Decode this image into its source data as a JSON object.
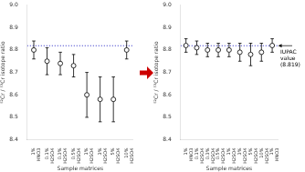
{
  "chart_data": [
    {
      "type": "scatter",
      "xlabel": "Sample matrices",
      "ylabel": "⁵²Cr / ⁵³Cr isotope ratio",
      "categories": [
        "1%\nHNO3",
        "0.1%\nH2SO4",
        "0.3%\nH2SO4",
        "0.5%\nH2SO4",
        "1%\nH2SO4",
        "3%\nH2SO4",
        "5%\nH2SO4",
        "10%\nH2SO4"
      ],
      "values": [
        8.8,
        8.75,
        8.74,
        8.73,
        8.6,
        8.58,
        8.58,
        8.8
      ],
      "errors": [
        0.04,
        0.06,
        0.05,
        0.05,
        0.1,
        0.1,
        0.1,
        0.04
      ],
      "color": "black",
      "marker": "circle",
      "ylim": [
        8.4,
        9.0
      ],
      "yticks": [
        8.4,
        8.5,
        8.6,
        8.7,
        8.8,
        8.9,
        {
          "value": 9.0,
          "label": "9.0"
        }
      ],
      "grid": false,
      "reference_line": {
        "value": 8.819,
        "color": "#4444cc",
        "line_style": "dotted"
      },
      "arrow": {
        "color": "#cc0000"
      }
    },
    {
      "type": "scatter",
      "xlabel": "Sample matrices",
      "ylabel": "⁵²Cr / ⁵³Cr isotope ratio",
      "categories": [
        "1%\nHNO3",
        "0.1%\nH2SO4",
        "0.3%\nH2SO4",
        "0.5%\nH2SO4",
        "1%\nH2SO4",
        "3%\nH2SO4",
        "5%\nH2SO4",
        "10%\nH2SO4",
        "1%\nHNO3"
      ],
      "values": [
        8.82,
        8.81,
        8.8,
        8.8,
        8.8,
        8.79,
        8.78,
        8.79,
        8.82
      ],
      "errors": [
        0.03,
        0.03,
        0.03,
        0.03,
        0.03,
        0.04,
        0.05,
        0.04,
        0.03
      ],
      "color": "black",
      "marker": "circle",
      "ylim": [
        8.4,
        9.0
      ],
      "yticks": [
        8.4,
        8.5,
        8.6,
        8.7,
        8.8,
        8.9,
        {
          "value": 9.0,
          "label": "9.0"
        }
      ],
      "grid": false,
      "reference_line": {
        "value": 8.819,
        "color": "#4444cc",
        "line_style": "dotted",
        "label": "IUPAC\nvalue\n(8.819)"
      }
    }
  ]
}
